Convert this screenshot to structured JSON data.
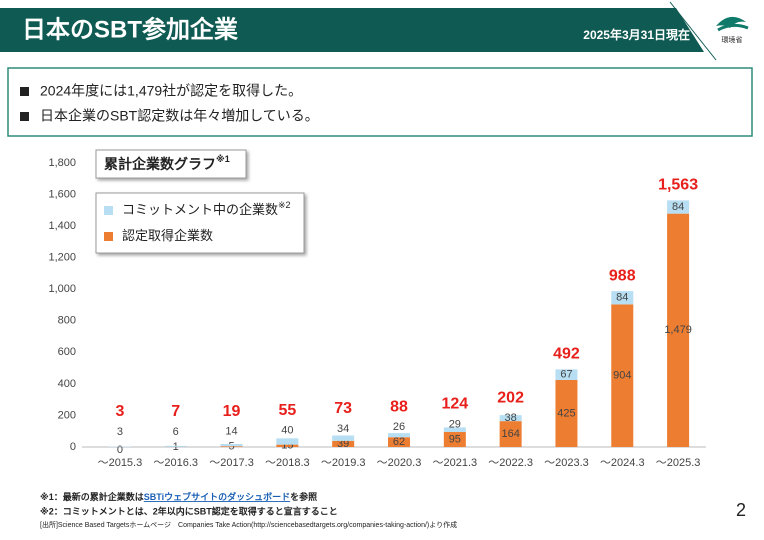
{
  "header": {
    "title": "日本のSBT参加企業",
    "date": "2025年3月31日現在",
    "logo": "環境省"
  },
  "bullets": [
    "2024年度には1,479社が認定を取得した。",
    "日本企業のSBT認定数は年々増加している。"
  ],
  "chart_data": {
    "type": "bar",
    "stacked": true,
    "title": "累計企業数グラフ",
    "title_note": "※1",
    "categories": [
      "～2015.3",
      "～2016.3",
      "～2017.3",
      "～2018.3",
      "～2019.3",
      "～2020.3",
      "～2021.3",
      "～2022.3",
      "～2023.3",
      "～2024.3",
      "～2025.3"
    ],
    "series": [
      {
        "name": "認定取得企業数",
        "color": "#ed7d31",
        "values": [
          0,
          1,
          5,
          15,
          39,
          62,
          95,
          164,
          425,
          904,
          1479
        ],
        "value_labels": [
          "0",
          "1",
          "5",
          "15",
          "39",
          "62",
          "95",
          "164",
          "425",
          "904",
          "1,479"
        ]
      },
      {
        "name": "コミットメント中の企業数",
        "name_note": "※2",
        "color": "#b7def2",
        "values": [
          3,
          6,
          14,
          40,
          34,
          26,
          29,
          38,
          67,
          84,
          84
        ]
      }
    ],
    "totals": [
      3,
      7,
      19,
      55,
      73,
      88,
      124,
      202,
      492,
      988,
      1563
    ],
    "total_labels": [
      "3",
      "7",
      "19",
      "55",
      "73",
      "88",
      "124",
      "202",
      "492",
      "988",
      "1,563"
    ],
    "total_color": "#e8201c",
    "ylim": [
      0,
      1800
    ],
    "yticks": [
      0,
      200,
      400,
      600,
      800,
      {
        "value": 1000,
        "label": "1,000"
      },
      {
        "value": 1200,
        "label": "1,200"
      },
      {
        "value": 1400,
        "label": "1,400"
      },
      {
        "value": 1600,
        "label": "1,600"
      },
      {
        "value": 1800,
        "label": "1,800"
      }
    ],
    "grid": false
  },
  "footnotes": {
    "note1": {
      "prefix": "※1：最新の累計企業数は",
      "link": "SBTiウェブサイトのダッシュボード",
      "suffix": "を参照"
    },
    "note2": "※2：コミットメントとは、2年以内にSBT認定を取得すると宣言すること",
    "source": "[出所]Science Based Targetsホームページ　Companies Take Action(http://sciencebasedtargets.org/companies-taking-action/)より作成"
  },
  "page_number": "2"
}
